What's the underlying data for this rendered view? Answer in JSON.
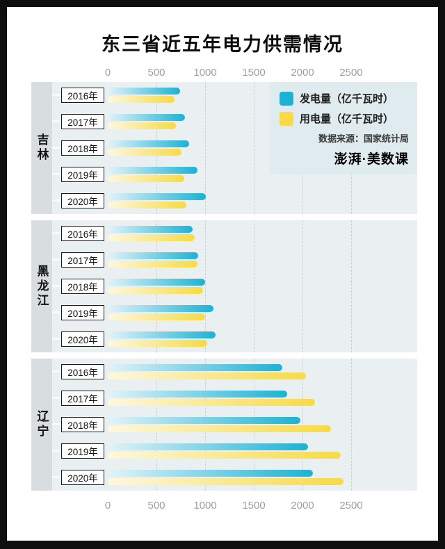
{
  "colors": {
    "generation": "#1cb2d4",
    "generation_light": "#e2f3f8",
    "consumption": "#f7da45",
    "consumption_light": "#fdf8df",
    "panel_bg": "#eaf0f2",
    "strip_bg": "#d8dddf",
    "legend_bg": "#dfebee",
    "grid": "#c6d1d5",
    "axis_text": "#98a0a5"
  },
  "legend": {
    "generation_label": "发电量（亿千瓦时）",
    "consumption_label": "用电量（亿千瓦时）",
    "source": "数据来源：国家统计局",
    "logo": "澎湃·美数课"
  },
  "chart_data": {
    "type": "bar",
    "orientation": "horizontal",
    "title": "东三省近五年电力供需情况",
    "unit": "亿千瓦时",
    "x_ticks": [
      0,
      500,
      1000,
      1500,
      2000,
      2500
    ],
    "xlim": [
      0,
      2500
    ],
    "grid": "dashed-vertical",
    "legend_position": "top-right",
    "series_names": [
      "发电量（亿千瓦时）",
      "用电量（亿千瓦时）"
    ],
    "groups": [
      {
        "province": "吉林",
        "years": [
          "2016年",
          "2017年",
          "2018年",
          "2019年",
          "2020年"
        ],
        "generation": [
          745,
          795,
          835,
          920,
          1005
        ],
        "consumption": [
          685,
          700,
          760,
          785,
          805
        ]
      },
      {
        "province": "黑龙江",
        "years": [
          "2016年",
          "2017年",
          "2018年",
          "2019年",
          "2020年"
        ],
        "generation": [
          870,
          925,
          1000,
          1085,
          1110
        ],
        "consumption": [
          895,
          920,
          975,
          1000,
          1020
        ]
      },
      {
        "province": "辽宁",
        "years": [
          "2016年",
          "2017年",
          "2018年",
          "2019年",
          "2020年"
        ],
        "generation": [
          1790,
          1840,
          1980,
          2060,
          2110
        ],
        "consumption": [
          2035,
          2130,
          2295,
          2395,
          2420
        ]
      }
    ]
  }
}
